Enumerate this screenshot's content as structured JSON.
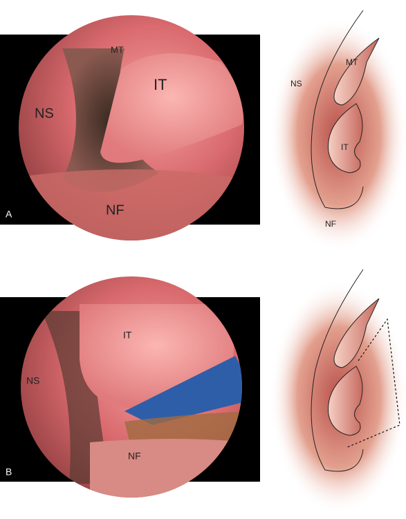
{
  "panels": [
    {
      "letter": "A",
      "photo_labels": [
        "MT",
        "IT",
        "NS",
        "NF"
      ],
      "drawing_labels": [
        "MT",
        "NS",
        "IT",
        "NF"
      ]
    },
    {
      "letter": "B",
      "photo_labels": [
        "IT",
        "NS",
        "NF"
      ]
    }
  ]
}
